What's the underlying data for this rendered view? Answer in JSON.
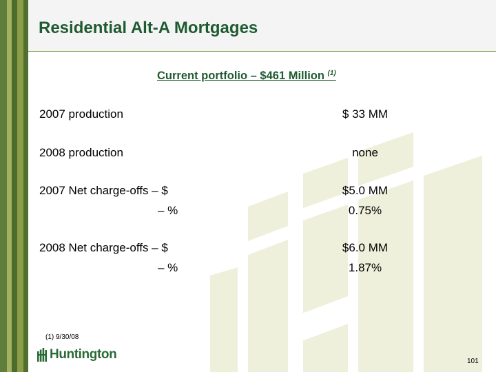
{
  "title": "Residential Alt-A Mortgages",
  "subtitle": {
    "text": "Current portfolio – $461 Million ",
    "footnote_ref": "(1)"
  },
  "rows": [
    {
      "label": "2007 production",
      "value": "$ 33 MM"
    },
    {
      "label": "2008 production",
      "value": "none"
    },
    {
      "label": "2007 Net charge-offs – $",
      "value": "$5.0 MM"
    },
    {
      "label": "– %",
      "value": "0.75%"
    },
    {
      "label": "2008 Net charge-offs – $",
      "value": "$6.0 MM"
    },
    {
      "label": "– %",
      "value": "1.87%"
    }
  ],
  "footnote": "(1)  9/30/08",
  "logo": {
    "text": "Huntington",
    "icon": "huntington-logo-icon"
  },
  "page_number": "101",
  "colors": {
    "title": "#1f5b31",
    "stripe_dark": "#4d6b2b",
    "stripe_light": "#a3b25e",
    "watermark": "#eef0dc",
    "header_bg": "#f4f4f4"
  }
}
